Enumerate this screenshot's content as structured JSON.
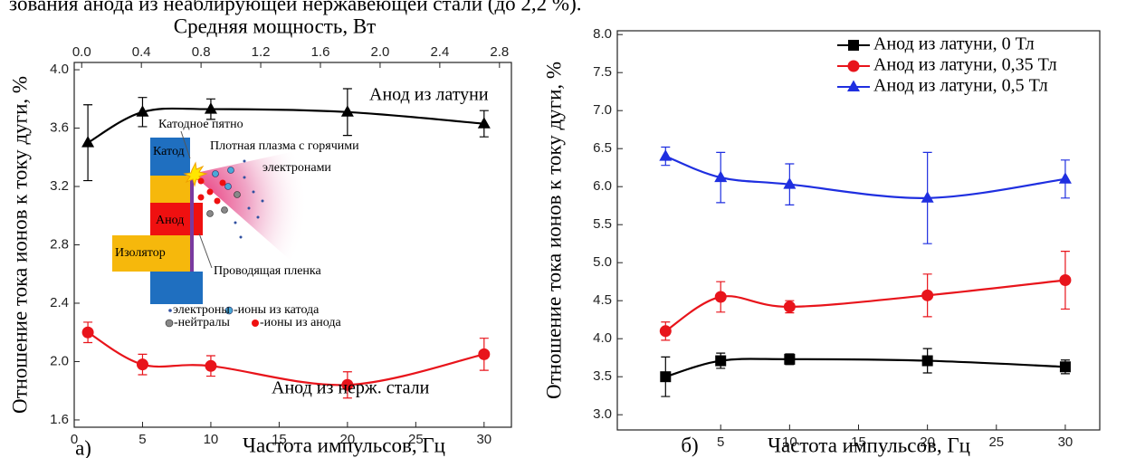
{
  "text_above": "зования анода из неаблирующей нержавеющей стали (до 2,2 %).",
  "inset": {
    "labels": [
      "Катодное пятно",
      "Плотная плазма с горячими",
      "электронами",
      "Катод",
      "Анод",
      "Изолятор",
      "Проводящая пленка"
    ],
    "legend": [
      "электроны",
      "-ионы из катода",
      "-нейтралы",
      "-ионы из анода"
    ]
  },
  "chart_data": [
    {
      "type": "line",
      "panel": "а)",
      "x_label": "Частота импульсов, Гц",
      "x2_label": "Средняя мощность, Вт",
      "y_label": "Отношение тока ионов к току дуги, %",
      "x": [
        1,
        5,
        10,
        20,
        30
      ],
      "series": [
        {
          "name": "Анод из латуни",
          "color": "#000000",
          "marker": "triangle",
          "values": [
            3.5,
            3.71,
            3.73,
            3.71,
            3.63
          ],
          "errors": [
            0.26,
            0.1,
            0.07,
            0.16,
            0.09
          ]
        },
        {
          "name": "Анод из нерж. стали",
          "color": "#e8141b",
          "marker": "circle",
          "values": [
            2.2,
            1.98,
            1.97,
            1.84,
            2.05
          ],
          "errors": [
            0.07,
            0.07,
            0.07,
            0.09,
            0.11
          ]
        }
      ],
      "xlim": [
        0,
        32
      ],
      "xticks": [
        0,
        5,
        10,
        15,
        20,
        25,
        30
      ],
      "x2lim": [
        -0.05,
        2.88
      ],
      "x2ticks": [
        {
          "value": 0,
          "label": "0.0"
        },
        0.4,
        0.8,
        1.2,
        1.6,
        {
          "value": 2,
          "label": "2.0"
        },
        2.4,
        2.8
      ],
      "ylim": [
        1.55,
        4.05
      ],
      "yticks": [
        1.6,
        {
          "value": 2,
          "label": "2.0"
        },
        2.4,
        2.8,
        3.2,
        3.6,
        {
          "value": 4,
          "label": "4.0"
        }
      ],
      "legend": false,
      "grid": false
    },
    {
      "type": "line",
      "panel": "б)",
      "x_label": "Частота импульсов, Гц",
      "y_label": "Отношение тока ионов к току дуги, %",
      "x": [
        1,
        5,
        10,
        20,
        30
      ],
      "series": [
        {
          "name": "Анод из латуни, 0 Тл",
          "color": "#000000",
          "marker": "square",
          "values": [
            3.5,
            3.71,
            3.73,
            3.71,
            3.63
          ],
          "errors": [
            0.26,
            0.1,
            0.07,
            0.16,
            0.09
          ]
        },
        {
          "name": "Анод из латуни, 0,35 Тл",
          "color": "#e8141b",
          "marker": "circle",
          "values": [
            4.1,
            4.55,
            4.42,
            4.57,
            4.77
          ],
          "errors": [
            0.12,
            0.2,
            0.08,
            0.28,
            0.38
          ]
        },
        {
          "name": "Анод из латуни, 0,5 Тл",
          "color": "#1f2fe0",
          "marker": "triangle",
          "values": [
            6.4,
            6.12,
            6.03,
            5.85,
            6.1
          ],
          "errors": [
            0.12,
            0.33,
            0.27,
            0.6,
            0.25
          ]
        }
      ],
      "xlim": [
        -2.5,
        32.5
      ],
      "xticks": [
        5,
        10,
        15,
        20,
        25,
        30
      ],
      "ylim": [
        2.8,
        8.05
      ],
      "yticks": [
        {
          "value": 3,
          "label": "3.0"
        },
        3.5,
        {
          "value": 4,
          "label": "4.0"
        },
        4.5,
        {
          "value": 5,
          "label": "5.0"
        },
        5.5,
        {
          "value": 6,
          "label": "6.0"
        },
        6.5,
        {
          "value": 7,
          "label": "7.0"
        },
        7.5,
        {
          "value": 8,
          "label": "8.0"
        }
      ],
      "legend": "upper right",
      "grid": false
    }
  ]
}
